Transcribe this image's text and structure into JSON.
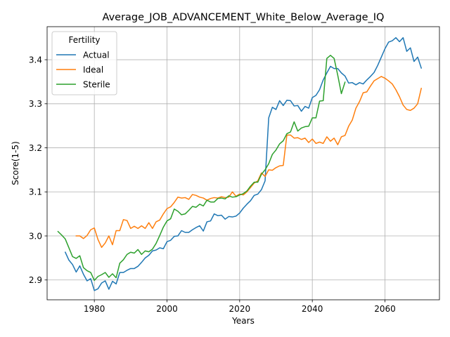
{
  "chart_data": {
    "type": "line",
    "title": "Average_JOB_ADVANCEMENT_White_Below_Average_IQ",
    "xlabel": "Years",
    "ylabel": "Score(1-5)",
    "xlim": [
      1967,
      2075
    ],
    "ylim": [
      2.855,
      3.475
    ],
    "xticks": [
      1980,
      2000,
      2020,
      2040,
      2060
    ],
    "yticks": [
      2.9,
      3.0,
      3.1,
      3.2,
      3.3,
      3.4
    ],
    "grid": true,
    "legend": {
      "title": "Fertility",
      "placement": "top-left"
    },
    "series": [
      {
        "name": "Actual",
        "color": "#1f77b4",
        "x": [
          1972,
          1973,
          1974,
          1975,
          1976,
          1977,
          1978,
          1979,
          1980,
          1981,
          1982,
          1983,
          1984,
          1985,
          1986,
          1987,
          1988,
          1989,
          1990,
          1991,
          1992,
          1993,
          1994,
          1995,
          1996,
          1997,
          1998,
          1999,
          2000,
          2001,
          2002,
          2003,
          2004,
          2005,
          2006,
          2007,
          2008,
          2009,
          2010,
          2011,
          2012,
          2013,
          2014,
          2015,
          2016,
          2017,
          2018,
          2019,
          2020,
          2021,
          2022,
          2023,
          2024,
          2025,
          2026,
          2027,
          2028,
          2029,
          2030,
          2031,
          2032,
          2033,
          2034,
          2035,
          2036,
          2037,
          2038,
          2039,
          2040,
          2041,
          2042,
          2043,
          2044,
          2045,
          2046,
          2047,
          2048,
          2049,
          2050,
          2051,
          2052,
          2053,
          2054,
          2055,
          2056,
          2057,
          2058,
          2059,
          2060,
          2061,
          2062,
          2063,
          2064,
          2065,
          2066,
          2067,
          2068,
          2069,
          2070
        ],
        "values": [
          2.963,
          2.945,
          2.935,
          2.918,
          2.932,
          2.913,
          2.898,
          2.903,
          2.876,
          2.88,
          2.893,
          2.898,
          2.879,
          2.897,
          2.891,
          2.917,
          2.917,
          2.922,
          2.926,
          2.926,
          2.931,
          2.94,
          2.95,
          2.956,
          2.966,
          2.968,
          2.973,
          2.971,
          2.987,
          2.99,
          2.999,
          3.0,
          3.012,
          3.008,
          3.008,
          3.014,
          3.019,
          3.023,
          3.011,
          3.032,
          3.034,
          3.05,
          3.046,
          3.047,
          3.038,
          3.044,
          3.043,
          3.045,
          3.052,
          3.063,
          3.072,
          3.08,
          3.092,
          3.095,
          3.105,
          3.125,
          3.268,
          3.292,
          3.287,
          3.307,
          3.296,
          3.308,
          3.307,
          3.295,
          3.296,
          3.283,
          3.294,
          3.29,
          3.314,
          3.319,
          3.332,
          3.354,
          3.37,
          3.385,
          3.38,
          3.38,
          3.37,
          3.363,
          3.347,
          3.348,
          3.343,
          3.348,
          3.345,
          3.354,
          3.362,
          3.371,
          3.387,
          3.406,
          3.425,
          3.44,
          3.443,
          3.45,
          3.441,
          3.45,
          3.419,
          3.427,
          3.396,
          3.406,
          3.381
        ]
      },
      {
        "name": "Ideal",
        "color": "#ff7f0e",
        "x": [
          1975,
          1976,
          1977,
          1978,
          1979,
          1980,
          1981,
          1982,
          1983,
          1984,
          1985,
          1986,
          1987,
          1988,
          1989,
          1990,
          1991,
          1992,
          1993,
          1994,
          1995,
          1996,
          1997,
          1998,
          1999,
          2000,
          2001,
          2002,
          2003,
          2004,
          2005,
          2006,
          2007,
          2008,
          2009,
          2010,
          2011,
          2012,
          2013,
          2014,
          2015,
          2016,
          2017,
          2018,
          2019,
          2020,
          2021,
          2022,
          2023,
          2024,
          2025,
          2026,
          2027,
          2028,
          2029,
          2030,
          2031,
          2032,
          2033,
          2034,
          2035,
          2036,
          2037,
          2038,
          2039,
          2040,
          2041,
          2042,
          2043,
          2044,
          2045,
          2046,
          2047,
          2048,
          2049,
          2050,
          2051,
          2052,
          2053,
          2054,
          2055,
          2056,
          2057,
          2058,
          2059,
          2060,
          2061,
          2062,
          2063,
          2064,
          2065,
          2066,
          2067,
          2068,
          2069,
          2070
        ],
        "values": [
          3.0,
          3.0,
          2.994,
          3.001,
          3.014,
          3.018,
          2.992,
          2.974,
          2.984,
          3.0,
          2.98,
          3.012,
          3.012,
          3.037,
          3.035,
          3.017,
          3.022,
          3.017,
          3.023,
          3.017,
          3.03,
          3.017,
          3.032,
          3.036,
          3.05,
          3.062,
          3.066,
          3.076,
          3.088,
          3.086,
          3.087,
          3.083,
          3.094,
          3.092,
          3.088,
          3.086,
          3.081,
          3.085,
          3.087,
          3.086,
          3.089,
          3.087,
          3.088,
          3.1,
          3.09,
          3.095,
          3.093,
          3.1,
          3.11,
          3.12,
          3.125,
          3.143,
          3.135,
          3.15,
          3.149,
          3.155,
          3.159,
          3.16,
          3.229,
          3.229,
          3.222,
          3.223,
          3.219,
          3.222,
          3.212,
          3.22,
          3.21,
          3.213,
          3.21,
          3.225,
          3.215,
          3.222,
          3.207,
          3.225,
          3.228,
          3.249,
          3.263,
          3.29,
          3.305,
          3.325,
          3.327,
          3.34,
          3.352,
          3.357,
          3.362,
          3.358,
          3.352,
          3.345,
          3.332,
          3.316,
          3.297,
          3.287,
          3.285,
          3.29,
          3.3,
          3.335
        ]
      },
      {
        "name": "Sterile",
        "color": "#2ca02c",
        "x": [
          1970,
          1971,
          1972,
          1973,
          1974,
          1975,
          1976,
          1977,
          1978,
          1979,
          1980,
          1981,
          1982,
          1983,
          1984,
          1985,
          1986,
          1987,
          1988,
          1989,
          1990,
          1991,
          1992,
          1993,
          1994,
          1995,
          1996,
          1997,
          1998,
          1999,
          2000,
          2001,
          2002,
          2003,
          2004,
          2005,
          2006,
          2007,
          2008,
          2009,
          2010,
          2011,
          2012,
          2013,
          2014,
          2015,
          2016,
          2017,
          2018,
          2019,
          2020,
          2021,
          2022,
          2023,
          2024,
          2025,
          2026,
          2027,
          2028,
          2029,
          2030,
          2031,
          2032,
          2033,
          2034,
          2035,
          2036,
          2037,
          2038,
          2039,
          2040,
          2041,
          2042,
          2043,
          2044,
          2045,
          2046,
          2047,
          2048,
          2049
        ],
        "values": [
          3.01,
          3.002,
          2.993,
          2.973,
          2.953,
          2.949,
          2.955,
          2.928,
          2.921,
          2.917,
          2.899,
          2.908,
          2.912,
          2.917,
          2.906,
          2.914,
          2.905,
          2.938,
          2.946,
          2.958,
          2.963,
          2.961,
          2.969,
          2.958,
          2.966,
          2.964,
          2.97,
          2.983,
          3.001,
          3.02,
          3.034,
          3.039,
          3.061,
          3.056,
          3.048,
          3.05,
          3.058,
          3.067,
          3.065,
          3.072,
          3.068,
          3.081,
          3.077,
          3.077,
          3.085,
          3.086,
          3.084,
          3.091,
          3.088,
          3.089,
          3.093,
          3.096,
          3.102,
          3.113,
          3.122,
          3.122,
          3.14,
          3.15,
          3.164,
          3.185,
          3.195,
          3.209,
          3.216,
          3.232,
          3.236,
          3.259,
          3.238,
          3.245,
          3.248,
          3.249,
          3.268,
          3.268,
          3.306,
          3.307,
          3.403,
          3.41,
          3.403,
          3.365,
          3.323,
          3.349
        ]
      }
    ]
  }
}
